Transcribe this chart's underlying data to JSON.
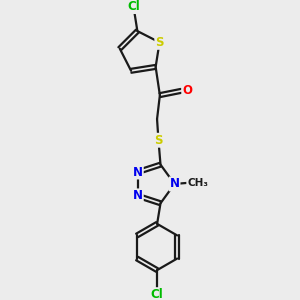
{
  "background_color": "#ececec",
  "bond_color": "#1a1a1a",
  "atom_colors": {
    "S": "#cccc00",
    "O": "#ff0000",
    "N": "#0000ee",
    "Cl": "#00bb00",
    "C": "#1a1a1a"
  },
  "figsize": [
    3.0,
    3.0
  ],
  "dpi": 100,
  "xlim": [
    0,
    10
  ],
  "ylim": [
    0,
    10
  ]
}
